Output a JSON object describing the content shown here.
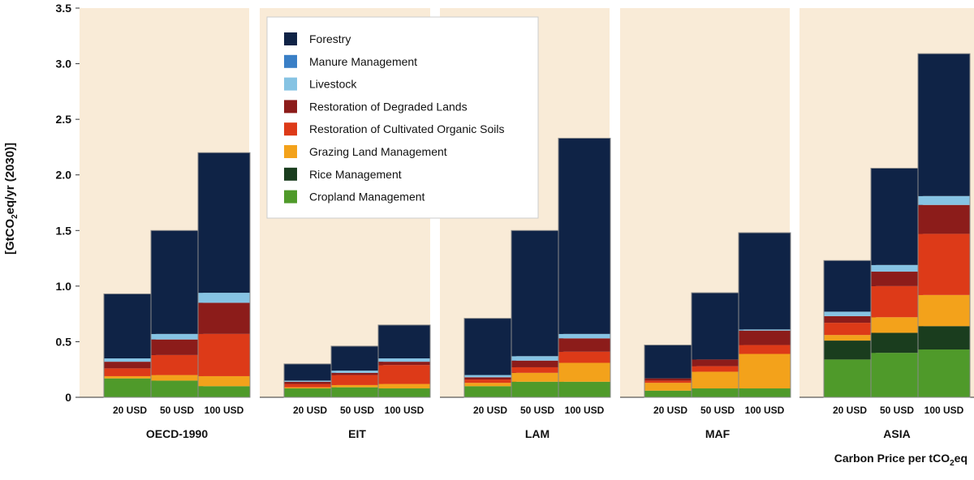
{
  "chart_data": {
    "type": "bar",
    "stacked": true,
    "ylabel": "[GtCO",
    "ylabel_sub": "2",
    "ylabel_rest": "eq/yr (2030)]",
    "xlabel": "Carbon Price per tCO",
    "xlabel_sub": "2",
    "xlabel_rest": "eq",
    "ylim": [
      0,
      3.5
    ],
    "yticks": [
      "0",
      "0.5",
      "1.0",
      "1.5",
      "2.0",
      "2.5",
      "3.0",
      "3.5"
    ],
    "ytick_values": [
      0,
      0.5,
      1.0,
      1.5,
      2.0,
      2.5,
      3.0,
      3.5
    ],
    "categories": [
      "20 USD",
      "50 USD",
      "100 USD"
    ],
    "legend_position": "top-center",
    "background_color": "#f9ebd7",
    "series": [
      {
        "name": "Cropland Management",
        "color": "#4f9a2a"
      },
      {
        "name": "Rice Management",
        "color": "#1a3d1e"
      },
      {
        "name": "Grazing Land Management",
        "color": "#f3a21b"
      },
      {
        "name": "Restoration of Cultivated Organic Soils",
        "color": "#dd3a18"
      },
      {
        "name": "Restoration of Degraded Lands",
        "color": "#8c1c1a"
      },
      {
        "name": "Livestock",
        "color": "#86c3e3"
      },
      {
        "name": "Manure Management",
        "color": "#3a7fc6"
      },
      {
        "name": "Forestry",
        "color": "#0f2346"
      }
    ],
    "legend_order": [
      "Forestry",
      "Manure Management",
      "Livestock",
      "Restoration of Degraded Lands",
      "Restoration of Cultivated Organic Soils",
      "Grazing Land Management",
      "Rice Management",
      "Cropland Management"
    ],
    "panels": [
      {
        "region": "OECD-1990",
        "bars": [
          {
            "category": "20 USD",
            "values": [
              0.17,
              0.0,
              0.02,
              0.07,
              0.06,
              0.03,
              0.0,
              0.58
            ]
          },
          {
            "category": "50 USD",
            "values": [
              0.15,
              0.0,
              0.05,
              0.18,
              0.14,
              0.05,
              0.0,
              0.93
            ]
          },
          {
            "category": "100 USD",
            "values": [
              0.1,
              0.0,
              0.09,
              0.38,
              0.28,
              0.09,
              0.0,
              1.26
            ]
          }
        ]
      },
      {
        "region": "EIT",
        "bars": [
          {
            "category": "20 USD",
            "values": [
              0.08,
              0.0,
              0.01,
              0.03,
              0.02,
              0.01,
              0.0,
              0.15
            ]
          },
          {
            "category": "50 USD",
            "values": [
              0.09,
              0.0,
              0.02,
              0.09,
              0.02,
              0.02,
              0.0,
              0.22
            ]
          },
          {
            "category": "100 USD",
            "values": [
              0.08,
              0.0,
              0.04,
              0.17,
              0.03,
              0.03,
              0.0,
              0.3
            ]
          }
        ]
      },
      {
        "region": "LAM",
        "bars": [
          {
            "category": "20 USD",
            "values": [
              0.1,
              0.0,
              0.03,
              0.03,
              0.02,
              0.02,
              0.0,
              0.51
            ]
          },
          {
            "category": "50 USD",
            "values": [
              0.14,
              0.0,
              0.08,
              0.05,
              0.06,
              0.04,
              0.0,
              1.13
            ]
          },
          {
            "category": "100 USD",
            "values": [
              0.14,
              0.0,
              0.17,
              0.1,
              0.12,
              0.04,
              0.0,
              1.76
            ]
          }
        ]
      },
      {
        "region": "MAF",
        "bars": [
          {
            "category": "20 USD",
            "values": [
              0.06,
              0.0,
              0.07,
              0.02,
              0.02,
              0.0,
              0.0,
              0.3
            ]
          },
          {
            "category": "50 USD",
            "values": [
              0.08,
              0.0,
              0.15,
              0.05,
              0.06,
              0.0,
              0.0,
              0.6
            ]
          },
          {
            "category": "100 USD",
            "values": [
              0.08,
              0.0,
              0.31,
              0.08,
              0.13,
              0.01,
              0.0,
              0.87
            ]
          }
        ]
      },
      {
        "region": "ASIA",
        "bars": [
          {
            "category": "20 USD",
            "values": [
              0.34,
              0.17,
              0.05,
              0.11,
              0.06,
              0.04,
              0.0,
              0.46
            ]
          },
          {
            "category": "50 USD",
            "values": [
              0.4,
              0.18,
              0.14,
              0.28,
              0.13,
              0.06,
              0.0,
              0.87
            ]
          },
          {
            "category": "100 USD",
            "values": [
              0.43,
              0.21,
              0.28,
              0.55,
              0.26,
              0.08,
              0.0,
              1.28
            ]
          }
        ]
      }
    ]
  }
}
